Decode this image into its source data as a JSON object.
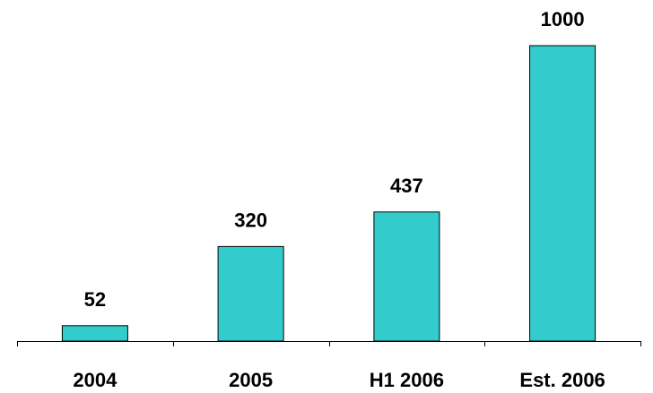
{
  "chart_data": {
    "type": "bar",
    "categories": [
      "2004",
      "2005",
      "H1 2006",
      "Est. 2006"
    ],
    "values": [
      52,
      320,
      437,
      1000
    ],
    "data_labels": [
      "52",
      "320",
      "437",
      "1000"
    ],
    "title": "",
    "xlabel": "",
    "ylabel": "",
    "ylim": [
      0,
      1000
    ],
    "grid": false,
    "legend": "none",
    "bar_color": "#33CCCC"
  }
}
